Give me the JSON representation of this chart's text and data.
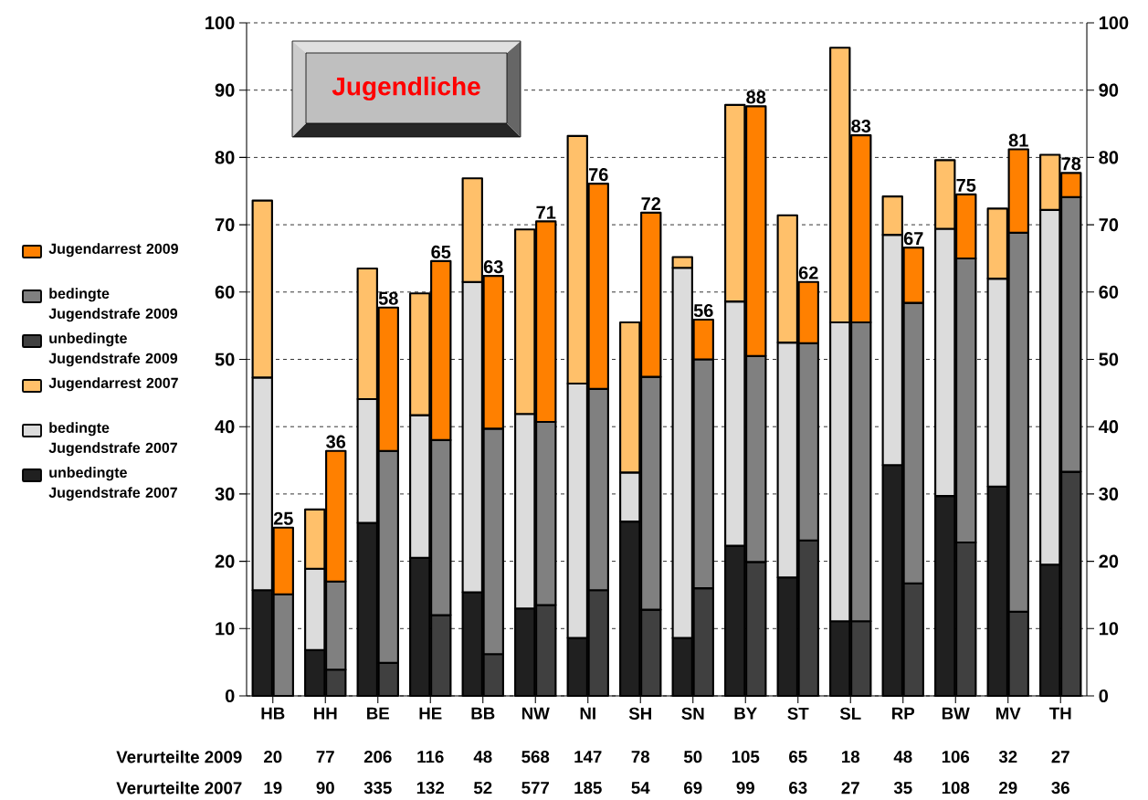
{
  "chart_data": {
    "type": "bar",
    "title": "Jugendliche",
    "grid": "y",
    "legend": "left",
    "categories": [
      "HB",
      "HH",
      "BE",
      "HE",
      "BB",
      "NW",
      "NI",
      "SH",
      "SN",
      "BY",
      "ST",
      "SL",
      "RP",
      "BW",
      "MV",
      "TH"
    ],
    "series": [
      {
        "name": "unbedingte Jugendstrafe 2007",
        "color": "#202020",
        "values": [
          15.7,
          6.8,
          25.7,
          20.5,
          15.4,
          13.0,
          8.6,
          25.9,
          8.6,
          22.3,
          17.6,
          11.1,
          34.3,
          29.7,
          31.1,
          19.5
        ],
        "base": [
          0,
          0,
          0,
          0,
          0,
          0,
          0,
          0,
          0,
          0,
          0,
          0,
          0,
          0,
          0,
          0
        ]
      },
      {
        "name": "bedingte Jugendstrafe 2007",
        "color": "#dcdcdc",
        "values": [
          31.6,
          12.1,
          18.4,
          21.2,
          46.1,
          28.9,
          37.8,
          7.3,
          55.0,
          36.3,
          34.9,
          44.4,
          34.2,
          39.7,
          30.9,
          52.7
        ],
        "base": [
          15.7,
          6.8,
          25.7,
          20.5,
          15.4,
          13.0,
          8.6,
          25.9,
          8.6,
          22.3,
          17.6,
          11.1,
          34.3,
          29.7,
          31.1,
          19.5
        ]
      },
      {
        "name": "Jugendarrest 2007",
        "color": "#ffc06a",
        "values": [
          26.3,
          8.8,
          19.4,
          18.1,
          15.4,
          27.4,
          36.8,
          22.3,
          1.6,
          29.2,
          18.9,
          40.8,
          5.7,
          10.2,
          10.4,
          8.2
        ],
        "base": [
          47.3,
          18.9,
          44.1,
          41.7,
          61.5,
          41.9,
          46.4,
          33.2,
          63.6,
          58.6,
          52.5,
          55.5,
          68.5,
          69.4,
          62.0,
          72.2
        ]
      },
      {
        "name": "unbedingte Jugendstrafe 2009",
        "color": "#404040",
        "values": [
          null,
          3.9,
          4.9,
          12.0,
          6.2,
          13.5,
          15.7,
          12.8,
          16.0,
          19.9,
          23.1,
          11.1,
          16.7,
          22.8,
          12.5,
          33.3
        ],
        "base": [
          null,
          0,
          0,
          0,
          0,
          0,
          0,
          0,
          0,
          0,
          0,
          0,
          0,
          0,
          0,
          0
        ]
      },
      {
        "name": "bedingte Jugendstrafe 2009",
        "color": "#808080",
        "values": [
          15.1,
          13.1,
          31.5,
          26.0,
          33.5,
          27.2,
          29.9,
          34.6,
          34.0,
          30.6,
          29.3,
          44.4,
          41.7,
          42.2,
          56.3,
          40.8
        ],
        "base": [
          0,
          3.9,
          4.9,
          12.0,
          6.2,
          13.5,
          15.7,
          12.8,
          16.0,
          19.9,
          23.1,
          11.1,
          16.7,
          22.8,
          12.5,
          33.3
        ]
      },
      {
        "name": "Jugendarrest 2009",
        "color": "#ff8000",
        "values": [
          9.9,
          19.4,
          21.3,
          26.6,
          22.7,
          29.8,
          30.5,
          24.4,
          5.9,
          37.1,
          9.1,
          27.8,
          8.2,
          9.5,
          12.4,
          3.6
        ],
        "base": [
          15.1,
          17.0,
          36.4,
          38.0,
          39.7,
          40.7,
          45.6,
          47.4,
          50.0,
          50.5,
          52.4,
          55.5,
          58.4,
          65.0,
          68.8,
          74.1
        ]
      }
    ],
    "ylim": [
      0,
      100
    ],
    "yticks": [
      0,
      10,
      20,
      30,
      40,
      50,
      60,
      70,
      80,
      90,
      100
    ],
    "y2lim": [
      0,
      100
    ],
    "y2ticks": [
      0,
      10,
      20,
      30,
      40,
      50,
      60,
      70,
      80,
      90,
      100
    ],
    "annotations": [
      "Verurteilte 2009",
      "20",
      "77",
      "206",
      "116",
      "48",
      "568",
      "147",
      "78",
      "50",
      "105",
      "65",
      "18",
      "48",
      "106",
      "32",
      "27",
      "Verurteilte 2007",
      "19",
      "90",
      "335",
      "132",
      "52",
      "577",
      "185",
      "54",
      "69",
      "99",
      "63",
      "27",
      "35",
      "108",
      "29",
      "36",
      {
        "text": "25",
        "x": "HB",
        "y": 25.0
      },
      {
        "text": "36",
        "x": "HH",
        "y": 36.4
      },
      {
        "text": "58",
        "x": "BE",
        "y": 57.7
      },
      {
        "text": "65",
        "x": "HE",
        "y": 64.6
      },
      {
        "text": "63",
        "x": "BB",
        "y": 62.4
      },
      {
        "text": "71",
        "x": "NW",
        "y": 70.5
      },
      {
        "text": "76",
        "x": "NI",
        "y": 76.1
      },
      {
        "text": "72",
        "x": "SH",
        "y": 71.8
      },
      {
        "text": "56",
        "x": "SN",
        "y": 55.9
      },
      {
        "text": "88",
        "x": "BY",
        "y": 87.6
      },
      {
        "text": "62",
        "x": "ST",
        "y": 61.5
      },
      {
        "text": "83",
        "x": "SL",
        "y": 83.3
      },
      {
        "text": "67",
        "x": "RP",
        "y": 66.6
      },
      {
        "text": "75",
        "x": "BW",
        "y": 74.5
      },
      {
        "text": "81",
        "x": "MV",
        "y": 81.2
      },
      {
        "text": "78",
        "x": "TH",
        "y": 77.7
      }
    ]
  }
}
